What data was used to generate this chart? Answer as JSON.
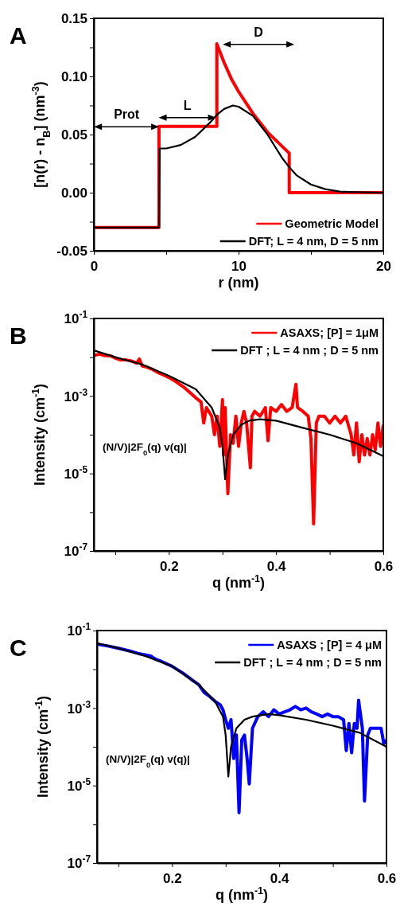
{
  "chart_data": [
    {
      "type": "line",
      "title": "A",
      "xlabel": "r (nm)",
      "ylabel": "[n(r) - n$_{B}$] (nm$^{-3}$)",
      "xlim": [
        0,
        20
      ],
      "xticks": [
        0,
        {
          "value": 5,
          "label": null
        },
        10,
        {
          "value": 15,
          "label": null
        },
        20
      ],
      "ylim": [
        -0.05,
        0.15
      ],
      "yticks": [
        -0.05,
        {
          "value": -0.025,
          "label": null
        },
        "0.00",
        0.05,
        {
          "value": 0.025,
          "label": null
        },
        {
          "value": 0.075,
          "label": null
        },
        "0.10",
        {
          "value": 0.125,
          "label": null
        },
        0.15
      ],
      "legend": "bottom right",
      "annotations": [
        "Prot",
        "L",
        "D"
      ],
      "series": [
        {
          "name": "Geometric Model",
          "color": "#ff0000",
          "x": [
            0,
            4.5,
            4.5,
            8.5,
            8.5,
            9,
            9.5,
            10,
            11,
            12,
            13,
            13.5,
            13.5,
            20
          ],
          "values": [
            -0.03,
            -0.03,
            0.057,
            0.057,
            0.128,
            0.112,
            0.098,
            0.087,
            0.068,
            0.052,
            0.04,
            0.034,
            0,
            0
          ]
        },
        {
          "name": "DFT; L = 4 nm, D = 5 nm",
          "color": "#000000",
          "x": [
            0,
            4.5,
            4.55,
            5,
            6,
            7,
            8,
            8.5,
            9,
            9.6,
            10,
            11,
            12,
            13,
            13.5,
            14,
            15,
            16,
            17,
            18,
            20
          ],
          "values": [
            -0.03,
            -0.03,
            0.038,
            0.038,
            0.041,
            0.048,
            0.06,
            0.067,
            0.072,
            0.075,
            0.074,
            0.066,
            0.05,
            0.03,
            0.022,
            0.015,
            0.007,
            0.003,
            0.001,
            0.0005,
            0
          ]
        }
      ]
    },
    {
      "type": "line",
      "title": "B",
      "xlabel": "q (nm$^{-1}$)",
      "ylabel": "Intensity (cm$^{-1}$)",
      "log": "y",
      "xlim": [
        0.06,
        0.6
      ],
      "xticks": [
        {
          "value": 0.1,
          "label": null
        },
        0.2,
        {
          "value": 0.3,
          "label": null
        },
        0.4,
        {
          "value": 0.5,
          "label": null
        },
        0.6
      ],
      "ylim": [
        1e-07,
        0.1
      ],
      "yticks": [
        {
          "value": 0.1,
          "label": "10$^{-1}$"
        },
        {
          "value": 0.01,
          "label": null
        },
        {
          "value": 0.001,
          "label": "10$^{-3}$"
        },
        {
          "value": 0.0001,
          "label": null
        },
        {
          "value": 1e-05,
          "label": "10$^{-5}$"
        },
        {
          "value": 1e-06,
          "label": null
        },
        {
          "value": 1e-07,
          "label": "10$^{-7}$"
        }
      ],
      "legend": "top right",
      "annotations": [
        "(N/V)|2F$_{0}$(q) v(q)|"
      ],
      "series": [
        {
          "name": "ASAXS; [P] = 1μM",
          "color": "#ff0000",
          "x": [
            0.06,
            0.07,
            0.08,
            0.09,
            0.1,
            0.11,
            0.12,
            0.13,
            0.14,
            0.145,
            0.15,
            0.16,
            0.17,
            0.18,
            0.19,
            0.2,
            0.21,
            0.22,
            0.23,
            0.24,
            0.25,
            0.26,
            0.265,
            0.27,
            0.28,
            0.285,
            0.29,
            0.295,
            0.3,
            0.302,
            0.305,
            0.31,
            0.315,
            0.32,
            0.325,
            0.33,
            0.335,
            0.34,
            0.345,
            0.352,
            0.355,
            0.36,
            0.37,
            0.38,
            0.385,
            0.39,
            0.4,
            0.41,
            0.42,
            0.43,
            0.437,
            0.44,
            0.45,
            0.46,
            0.465,
            0.47,
            0.475,
            0.48,
            0.49,
            0.5,
            0.51,
            0.52,
            0.53,
            0.54,
            0.545,
            0.55,
            0.555,
            0.56,
            0.565,
            0.57,
            0.575,
            0.58,
            0.585,
            0.59,
            0.595,
            0.6
          ],
          "values": [
            0.011,
            0.012,
            0.011,
            0.011,
            0.0095,
            0.0085,
            0.0085,
            0.008,
            0.007,
            0.009,
            0.006,
            0.0055,
            0.0048,
            0.004,
            0.0035,
            0.003,
            0.0025,
            0.002,
            0.0016,
            0.0012,
            0.0009,
            0.0007,
            0.0002,
            0.0005,
            0.0003,
            0.0001,
            0.0003,
            5e-05,
            0.0008,
            3e-05,
            0.0005,
            3e-06,
            0.0001,
            6e-05,
            0.0003,
            5e-05,
            0.0002,
            0.0004,
            0.0002,
            1.4e-05,
            0.0003,
            0.0004,
            0.0003,
            0.0005,
            7e-05,
            0.0005,
            0.0004,
            0.0006,
            0.0004,
            0.0005,
            0.002,
            0.0005,
            0.0004,
            0.0003,
            8e-05,
            5e-07,
            0.0002,
            0.0003,
            0.0003,
            0.0002,
            0.0003,
            0.0002,
            0.0003,
            0.0001,
            3e-05,
            0.0002,
            2e-05,
            0.0001,
            3e-05,
            8e-05,
            3e-05,
            0.0001,
            4e-05,
            0.0002,
            5e-05,
            0.00018
          ]
        },
        {
          "name": "DFT ; L = 4 nm ; D = 5 nm",
          "color": "#000000",
          "x": [
            0.06,
            0.1,
            0.15,
            0.2,
            0.25,
            0.28,
            0.295,
            0.3,
            0.305,
            0.31,
            0.32,
            0.335,
            0.35,
            0.37,
            0.4,
            0.45,
            0.5,
            0.55,
            0.6
          ],
          "values": [
            0.015,
            0.01,
            0.0065,
            0.0033,
            0.0015,
            0.0005,
            0.00015,
            5e-05,
            7e-06,
            3e-05,
            0.0001,
            0.00018,
            0.00023,
            0.00025,
            0.00023,
            0.00015,
            0.0001,
            6e-05,
            2.8e-05
          ]
        }
      ]
    },
    {
      "type": "line",
      "title": "C",
      "xlabel": "q (nm$^{-1}$)",
      "ylabel": "Intensity (cm$^{-1}$)",
      "log": "y",
      "xlim": [
        0.06,
        0.6
      ],
      "xticks": [
        {
          "value": 0.1,
          "label": null
        },
        0.2,
        {
          "value": 0.3,
          "label": null
        },
        0.4,
        {
          "value": 0.5,
          "label": null
        },
        0.6
      ],
      "ylim": [
        1e-07,
        0.1
      ],
      "yticks": [
        {
          "value": 0.1,
          "label": "10$^{-1}$"
        },
        {
          "value": 0.01,
          "label": null
        },
        {
          "value": 0.001,
          "label": "10$^{-3}$"
        },
        {
          "value": 0.0001,
          "label": null
        },
        {
          "value": 1e-05,
          "label": "10$^{-5}$"
        },
        {
          "value": 1e-06,
          "label": null
        },
        {
          "value": 1e-07,
          "label": "10$^{-7}$"
        }
      ],
      "legend": "top right",
      "annotations": [
        "(N/V)|2F$_{0}$(q) v(q)|"
      ],
      "series": [
        {
          "name": "ASAXS ; [P] = 4 μM",
          "color": "#0000ff",
          "x": [
            0.06,
            0.08,
            0.1,
            0.12,
            0.14,
            0.16,
            0.17,
            0.18,
            0.2,
            0.22,
            0.24,
            0.25,
            0.26,
            0.27,
            0.28,
            0.29,
            0.295,
            0.3,
            0.305,
            0.31,
            0.315,
            0.32,
            0.325,
            0.33,
            0.335,
            0.34,
            0.344,
            0.35,
            0.36,
            0.37,
            0.38,
            0.39,
            0.4,
            0.41,
            0.42,
            0.43,
            0.44,
            0.45,
            0.46,
            0.47,
            0.48,
            0.49,
            0.5,
            0.51,
            0.52,
            0.525,
            0.53,
            0.535,
            0.54,
            0.545,
            0.548,
            0.555,
            0.559,
            0.565,
            0.57,
            0.58,
            0.59,
            0.595,
            0.6
          ],
          "values": [
            0.045,
            0.04,
            0.035,
            0.03,
            0.025,
            0.022,
            0.018,
            0.016,
            0.012,
            0.008,
            0.005,
            0.004,
            0.0025,
            0.002,
            0.0015,
            0.0012,
            0.0009,
            0.0005,
            0.0003,
            0.0005,
            5e-05,
            0.0002,
            2e-06,
            0.00015,
            0.0002,
            5e-05,
            1.1e-05,
            0.0003,
            0.0006,
            0.0008,
            0.0006,
            0.0009,
            0.0007,
            0.0008,
            0.0009,
            0.0011,
            0.0009,
            0.001,
            0.0008,
            0.0007,
            0.0006,
            0.0007,
            0.0006,
            0.0006,
            0.0005,
            8e-05,
            0.0004,
            7e-05,
            0.0004,
            0.0003,
            0.0016,
            0.0003,
            4e-06,
            0.0002,
            0.0003,
            0.0003,
            0.0003,
            0.00012,
            0.00015
          ]
        },
        {
          "name": "DFT ; L = 4 nm ; D = 5 nm",
          "color": "#000000",
          "x": [
            0.06,
            0.1,
            0.15,
            0.2,
            0.25,
            0.28,
            0.295,
            0.3,
            0.305,
            0.31,
            0.32,
            0.335,
            0.35,
            0.38,
            0.4,
            0.45,
            0.5,
            0.55,
            0.6
          ],
          "values": [
            0.047,
            0.035,
            0.022,
            0.012,
            0.004,
            0.0015,
            0.0006,
            0.0002,
            1.7e-05,
            0.0001,
            0.0003,
            0.0005,
            0.0006,
            0.0007,
            0.00065,
            0.0005,
            0.00035,
            0.00023,
            0.0001
          ]
        }
      ]
    }
  ]
}
